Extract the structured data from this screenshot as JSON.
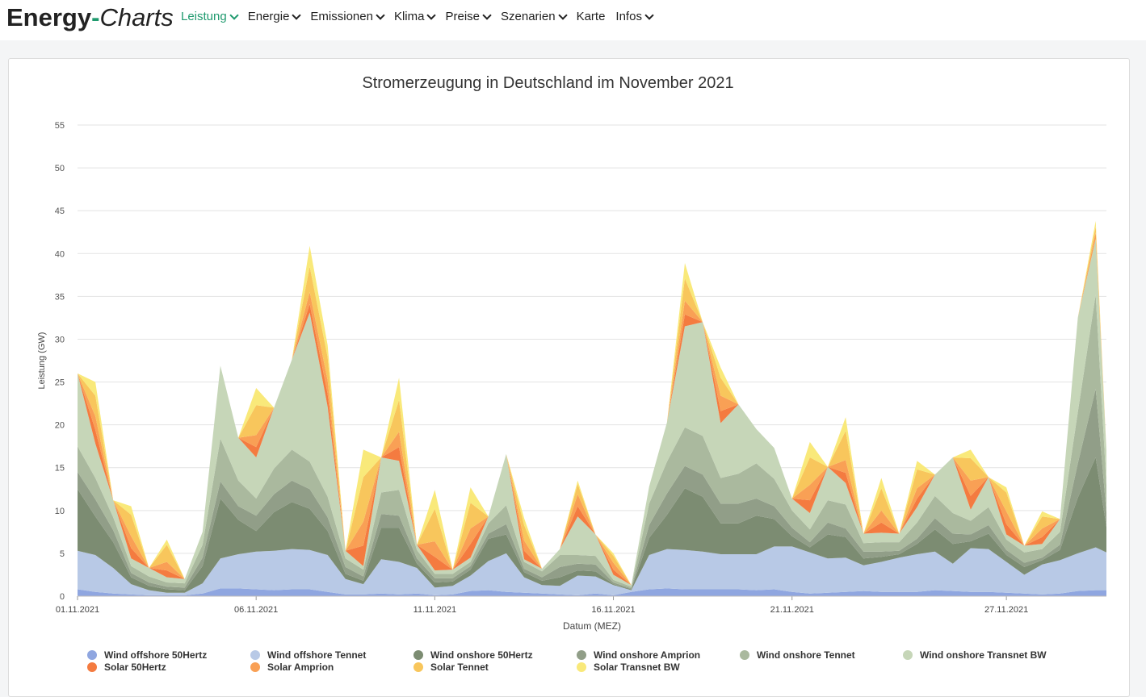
{
  "nav": {
    "logo_a": "Energy",
    "logo_dash": "-",
    "logo_b": "Charts",
    "items": [
      "Leistung",
      "Energie",
      "Emissionen",
      "Klima",
      "Preise",
      "Szenarien",
      "Karte",
      "Infos"
    ]
  },
  "colors": {
    "accent": "#1f9a6e",
    "series": [
      "#8fa6e0",
      "#b8c9e6",
      "#7c8c72",
      "#919e88",
      "#aab99e",
      "#c6d6b8",
      "#f47b40",
      "#f9a055",
      "#f8c65c",
      "#f9e97a"
    ]
  },
  "chart_data": {
    "type": "area",
    "stacked": true,
    "title": "Stromerzeugung in Deutschland im November 2021",
    "xlabel": "Datum (MEZ)",
    "ylabel": "Leistung (GW)",
    "ylim": [
      0,
      55
    ],
    "yticks": [
      "0",
      "5",
      "10",
      "15",
      "20",
      "25",
      "30",
      "35",
      "40",
      "45",
      "50",
      "55"
    ],
    "xticks": [
      "01.11.2021",
      "06.11.2021",
      "11.11.2021",
      "16.11.2021",
      "21.11.2021",
      "27.11.2021"
    ],
    "xtick_days": [
      1,
      6,
      11,
      16,
      21,
      27
    ],
    "xlim": [
      1,
      29.8
    ],
    "legend_position": "bottom",
    "x": [
      1,
      1.5,
      2,
      2.5,
      3,
      3.5,
      4,
      4.5,
      5,
      5.5,
      6,
      6.5,
      7,
      7.5,
      8,
      8.5,
      9,
      9.5,
      10,
      10.5,
      11,
      11.5,
      12,
      12.5,
      13,
      13.5,
      14,
      14.5,
      15,
      15.5,
      16,
      16.5,
      17,
      17.5,
      18,
      18.5,
      19,
      19.5,
      20,
      20.5,
      21,
      21.5,
      22,
      22.5,
      23,
      23.5,
      24,
      24.5,
      25,
      25.5,
      26,
      26.5,
      27,
      27.5,
      28,
      28.5,
      29,
      29.5,
      29.8
    ],
    "series": [
      {
        "name": "Wind offshore 50Hertz",
        "values": [
          0.8,
          0.5,
          0.3,
          0.2,
          0.1,
          0.1,
          0.1,
          0.3,
          0.9,
          0.9,
          0.8,
          0.7,
          0.8,
          0.8,
          0.5,
          0.2,
          0.2,
          0.3,
          0.2,
          0.3,
          0.1,
          0.2,
          0.6,
          0.7,
          0.5,
          0.4,
          0.3,
          0.2,
          0.1,
          0.3,
          0.1,
          0.5,
          0.8,
          0.9,
          0.8,
          0.8,
          0.8,
          0.8,
          0.7,
          0.8,
          0.5,
          0.3,
          0.4,
          0.5,
          0.6,
          0.5,
          0.5,
          0.5,
          0.7,
          0.6,
          0.5,
          0.5,
          0.4,
          0.3,
          0.2,
          0.3,
          0.6,
          0.7,
          0.7
        ]
      },
      {
        "name": "Wind offshore Tennet",
        "values": [
          4.5,
          4.3,
          3.0,
          1.2,
          0.6,
          0.3,
          0.3,
          1.2,
          3.5,
          4.0,
          4.4,
          4.6,
          4.7,
          4.6,
          4.3,
          1.8,
          1.2,
          4.0,
          3.8,
          3.0,
          0.9,
          1.0,
          1.8,
          3.4,
          4.5,
          1.8,
          1.0,
          1.0,
          2.3,
          2.0,
          1.2,
          0.2,
          4.0,
          4.6,
          4.6,
          4.4,
          4.1,
          4.1,
          4.2,
          5.0,
          5.3,
          4.8,
          4.0,
          4.0,
          3.0,
          3.5,
          4.0,
          4.4,
          4.5,
          3.2,
          5.1,
          5.0,
          3.6,
          2.2,
          3.5,
          3.9,
          4.4,
          5.0,
          4.4
        ]
      },
      {
        "name": "Wind onshore 50Hertz",
        "values": [
          7.2,
          4.5,
          3.0,
          0.8,
          0.5,
          0.4,
          0.3,
          2.0,
          7.0,
          4.0,
          2.4,
          4.5,
          5.5,
          4.8,
          2.8,
          0.6,
          0.4,
          3.7,
          4.0,
          0.5,
          0.6,
          0.5,
          0.7,
          2.6,
          2.2,
          0.6,
          0.5,
          1.0,
          0.6,
          0.6,
          0.1,
          0.1,
          2.0,
          4.0,
          7.2,
          6.4,
          3.6,
          3.6,
          4.5,
          3.2,
          1.2,
          0.6,
          2.8,
          2.4,
          0.8,
          0.6,
          0.4,
          1.2,
          2.6,
          2.3,
          0.8,
          1.8,
          0.8,
          0.9,
          0.5,
          1.2,
          6.5,
          10.5,
          3.0
        ]
      },
      {
        "name": "Wind onshore Amprion",
        "values": [
          2.0,
          2.0,
          1.4,
          0.5,
          0.4,
          0.3,
          0.3,
          1.0,
          2.0,
          1.6,
          1.8,
          2.1,
          2.5,
          2.3,
          1.6,
          0.8,
          0.5,
          1.6,
          1.4,
          0.6,
          0.5,
          0.4,
          0.4,
          0.6,
          1.2,
          0.4,
          0.4,
          1.2,
          0.8,
          0.8,
          0.2,
          0.1,
          1.5,
          2.5,
          2.6,
          2.6,
          2.3,
          2.3,
          2.0,
          1.5,
          1.0,
          0.6,
          1.4,
          1.0,
          0.8,
          0.6,
          0.4,
          0.6,
          1.3,
          1.2,
          0.8,
          1.0,
          0.6,
          0.5,
          0.3,
          0.6,
          4.0,
          8.0,
          1.7
        ]
      },
      {
        "name": "Wind onshore Tennet",
        "values": [
          3.0,
          2.5,
          1.5,
          0.8,
          0.7,
          0.5,
          0.5,
          1.5,
          5.0,
          3.0,
          2.0,
          3.0,
          3.6,
          3.2,
          2.4,
          1.0,
          0.8,
          2.5,
          3.0,
          1.0,
          0.5,
          0.5,
          0.5,
          1.2,
          2.2,
          0.8,
          0.7,
          1.4,
          1.0,
          1.0,
          0.3,
          0.2,
          2.5,
          3.7,
          4.5,
          4.5,
          3.0,
          3.5,
          4.1,
          3.2,
          2.0,
          1.5,
          2.6,
          2.8,
          1.0,
          1.1,
          1.0,
          1.9,
          2.6,
          2.4,
          1.6,
          2.1,
          1.2,
          1.2,
          1.0,
          1.5,
          6.0,
          11.0,
          3.2
        ]
      },
      {
        "name": "Wind onshore Transnet BW",
        "values": [
          8.5,
          4.0,
          2.0,
          0.9,
          1.0,
          0.6,
          0.5,
          1.5,
          8.5,
          5.0,
          4.8,
          7.1,
          10.5,
          17.4,
          10.5,
          0.9,
          0.4,
          4.1,
          3.4,
          0.6,
          0.4,
          0.5,
          0.5,
          0.8,
          6.0,
          0.3,
          0.3,
          0.7,
          4.5,
          2.5,
          0.6,
          0.2,
          2.0,
          4.6,
          11.8,
          13.3,
          6.4,
          8.1,
          4.0,
          3.6,
          1.4,
          1.9,
          3.9,
          2.5,
          1.1,
          1.1,
          1.0,
          1.8,
          2.5,
          6.5,
          1.3,
          3.5,
          0.6,
          0.8,
          0.6,
          1.5,
          11.0,
          6.5,
          4.0
        ]
      },
      {
        "name": "Solar 50Hertz",
        "values": [
          0,
          1.6,
          0,
          1.2,
          0,
          0.8,
          0,
          0,
          0,
          0,
          1.2,
          0,
          0,
          1.0,
          1.5,
          0,
          2.4,
          0,
          1.6,
          0,
          1.6,
          0,
          1.6,
          0,
          0,
          1.0,
          0,
          0,
          1.2,
          0,
          0.6,
          0,
          0,
          0,
          1.4,
          0,
          1.4,
          0,
          0,
          0,
          0,
          1.5,
          0,
          1.2,
          0,
          1.2,
          0,
          1.0,
          0,
          0,
          1.6,
          0,
          1.2,
          0,
          0.8,
          0,
          0,
          0,
          0
        ]
      },
      {
        "name": "Solar Amprion",
        "values": [
          0,
          1.6,
          0,
          1.4,
          0,
          1.0,
          0,
          0,
          0,
          0,
          1.4,
          0,
          0,
          1.4,
          1.6,
          0,
          2.8,
          0,
          1.8,
          0,
          1.8,
          0,
          1.8,
          0,
          0,
          1.2,
          0,
          0,
          1.4,
          0,
          0.8,
          0,
          0,
          0,
          1.6,
          0,
          1.8,
          0,
          0,
          0,
          0,
          1.8,
          0,
          1.5,
          0,
          1.4,
          0,
          1.2,
          0,
          0,
          1.8,
          0,
          1.5,
          0,
          1.0,
          0,
          0,
          0.8,
          0
        ]
      },
      {
        "name": "Solar Tennet",
        "values": [
          0,
          2.4,
          0,
          2.5,
          0,
          2.0,
          0,
          0,
          0,
          0,
          3.5,
          0,
          0,
          3.0,
          2.7,
          0,
          5.2,
          0,
          3.7,
          0,
          3.8,
          0,
          3.0,
          0,
          0,
          1.8,
          0,
          0,
          1.2,
          0,
          0.8,
          0,
          0,
          0,
          2.6,
          0,
          2.1,
          0,
          0,
          0,
          0,
          3.2,
          0,
          3.4,
          0,
          2.6,
          0,
          2.2,
          0,
          0,
          2.6,
          0,
          2.2,
          0,
          1.4,
          0,
          0,
          0.7,
          0
        ]
      },
      {
        "name": "Solar Transnet BW",
        "values": [
          0,
          1.6,
          0,
          1.0,
          0,
          0.6,
          0,
          0,
          0,
          0,
          2.0,
          0,
          0,
          2.4,
          1.4,
          0,
          3.2,
          0,
          2.6,
          0,
          2.2,
          0,
          1.8,
          0,
          0,
          0.8,
          0,
          0,
          0.4,
          0,
          0.3,
          0,
          0,
          0,
          1.8,
          0,
          1.2,
          0,
          0,
          0,
          0,
          1.8,
          0,
          1.6,
          0,
          1.2,
          0,
          1.0,
          0,
          0,
          1.0,
          0,
          0.6,
          0,
          0.6,
          0,
          0,
          0.6,
          0
        ]
      }
    ]
  }
}
